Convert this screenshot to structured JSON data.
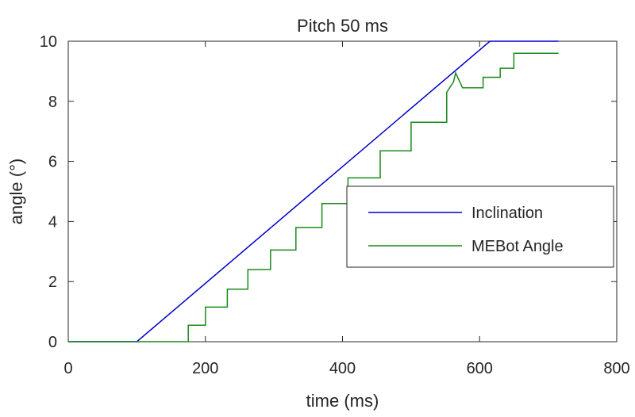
{
  "chart_data": {
    "type": "line",
    "title": "Pitch 50 ms",
    "xlabel": "time (ms)",
    "ylabel": "angle (°)",
    "xlim": [
      0,
      800
    ],
    "ylim": [
      0,
      10
    ],
    "xticks": [
      0,
      200,
      400,
      600,
      800
    ],
    "yticks": [
      0,
      2,
      4,
      6,
      8,
      10
    ],
    "grid": false,
    "legend_position": "right",
    "series": [
      {
        "name": "Inclination",
        "color": "#0000c8",
        "x": [
          0,
          100,
          615,
          715
        ],
        "y": [
          0,
          0,
          10,
          10
        ]
      },
      {
        "name": "MEBot Angle",
        "color": "#1a8a1a",
        "x": [
          0,
          175,
          175,
          200,
          200,
          232,
          232,
          262,
          262,
          295,
          295,
          332,
          332,
          370,
          370,
          408,
          408,
          455,
          455,
          500,
          500,
          552,
          552,
          562,
          565,
          575,
          575,
          605,
          605,
          630,
          630,
          650,
          650,
          715
        ],
        "y": [
          0,
          0,
          0.55,
          0.55,
          1.15,
          1.15,
          1.75,
          1.75,
          2.4,
          2.4,
          3.05,
          3.05,
          3.8,
          3.8,
          4.6,
          4.6,
          5.45,
          5.45,
          6.35,
          6.35,
          7.3,
          7.3,
          8.3,
          8.65,
          8.95,
          8.45,
          8.45,
          8.45,
          8.8,
          8.8,
          9.1,
          9.1,
          9.6,
          9.6
        ]
      }
    ]
  }
}
